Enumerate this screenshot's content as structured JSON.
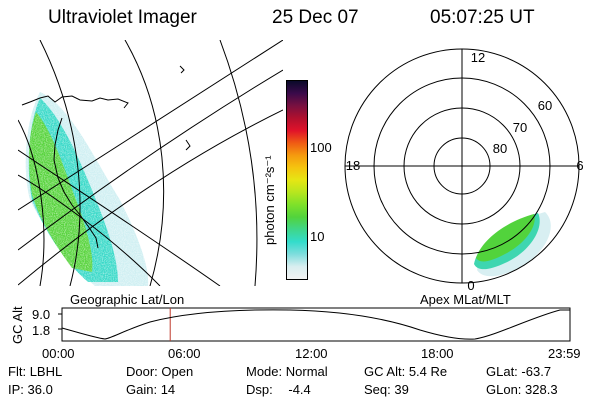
{
  "header": {
    "instrument": "Ultraviolet Imager",
    "date": "25 Dec 07",
    "time": "05:07:25 UT"
  },
  "geographic_panel": {
    "label": "Geographic Lat/Lon"
  },
  "colorbar": {
    "unit_label": "photon cm⁻²s⁻¹",
    "ticks": [
      "100",
      "10"
    ],
    "colors": [
      "#f2f2f2",
      "#d9eef0",
      "#7fdddd",
      "#33dccb",
      "#3fd68a",
      "#52d33c",
      "#7ee12a",
      "#b7e61f",
      "#e6e614",
      "#f5c40f",
      "#f59a0f",
      "#ef5a14",
      "#e0122a",
      "#b0102e",
      "#781040",
      "#3a0a4a",
      "#0a0a2a"
    ]
  },
  "polar_panel": {
    "label": "Apex MLat/MLT",
    "mlt_labels": {
      "top": "12",
      "left": "18",
      "right": "6",
      "bottom": "0"
    },
    "lat_labels": [
      "60",
      "70",
      "80"
    ]
  },
  "altitude_strip": {
    "axis_label": "GC Alt",
    "y_ticks": [
      "9.0",
      "1.8"
    ],
    "x_ticks": [
      "00:00",
      "06:00",
      "12:00",
      "18:00",
      "23:59"
    ],
    "current_time_fraction": 0.213
  },
  "footer": {
    "flt_label": "Flt:",
    "flt_value": "LBHL",
    "ip_label": "IP:",
    "ip_value": "36.0",
    "door_label": "Door:",
    "door_value": "Open",
    "gain_label": "Gain:",
    "gain_value": "14",
    "mode_label": "Mode:",
    "mode_value": "Normal",
    "dsp_label": "Dsp:",
    "dsp_value": "-4.4",
    "gcalt_label": "GC Alt:",
    "gcalt_value": "5.4 Re",
    "seq_label": "Seq:",
    "seq_value": "39",
    "glat_label": "GLat:",
    "glat_value": "-63.7",
    "glon_label": "GLon:",
    "glon_value": "328.3"
  }
}
